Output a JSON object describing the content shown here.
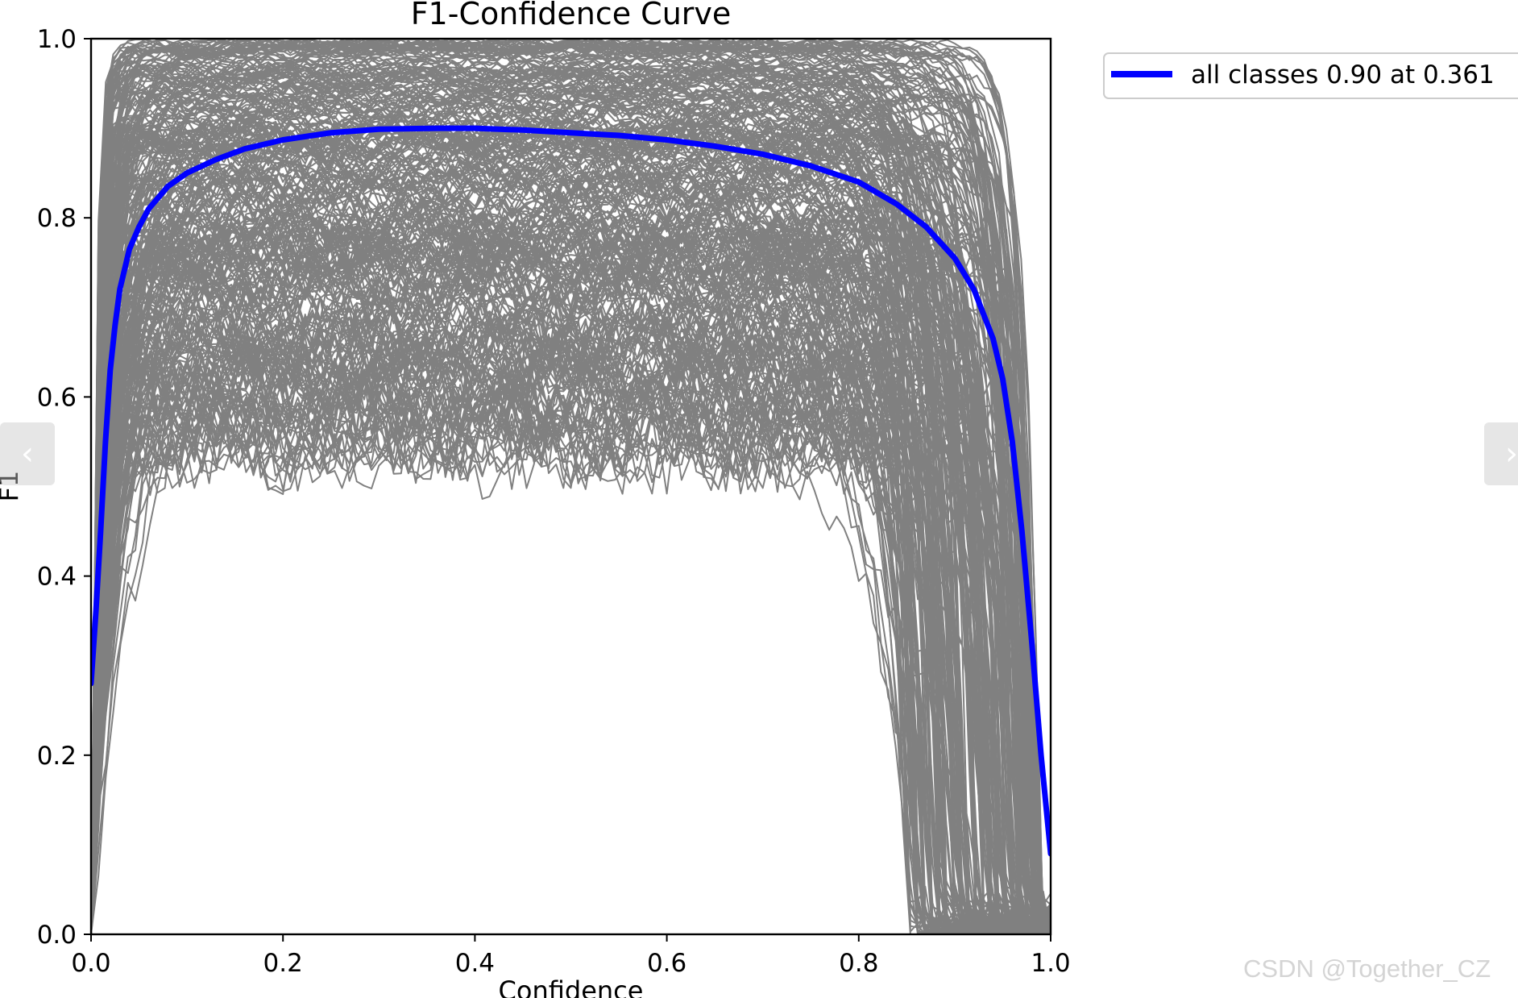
{
  "chart_data": {
    "type": "line",
    "title": "F1-Confidence Curve",
    "xlabel": "Confidence",
    "ylabel": "F1",
    "xlim": [
      0.0,
      1.0
    ],
    "ylim": [
      0.0,
      1.0
    ],
    "x_ticks": [
      "0.0",
      "0.2",
      "0.4",
      "0.6",
      "0.8",
      "1.0"
    ],
    "y_ticks": [
      "0.0",
      "0.2",
      "0.4",
      "0.6",
      "0.8",
      "1.0"
    ],
    "grid": false,
    "legend": {
      "placement": "outside-top-right",
      "entries": [
        {
          "label": "all classes 0.90 at 0.361",
          "color": "#0000ff"
        }
      ]
    },
    "series": [
      {
        "name": "all classes 0.90 at 0.361",
        "color": "#0000ff",
        "x": [
          0.0,
          0.005,
          0.01,
          0.015,
          0.02,
          0.025,
          0.03,
          0.04,
          0.05,
          0.06,
          0.08,
          0.1,
          0.13,
          0.16,
          0.2,
          0.25,
          0.3,
          0.361,
          0.4,
          0.45,
          0.5,
          0.55,
          0.6,
          0.65,
          0.7,
          0.75,
          0.8,
          0.84,
          0.87,
          0.9,
          0.92,
          0.94,
          0.95,
          0.96,
          0.97,
          0.98,
          0.99,
          1.0
        ],
        "y": [
          0.28,
          0.36,
          0.45,
          0.55,
          0.63,
          0.68,
          0.72,
          0.765,
          0.79,
          0.81,
          0.835,
          0.85,
          0.865,
          0.877,
          0.887,
          0.895,
          0.899,
          0.9,
          0.9,
          0.898,
          0.895,
          0.892,
          0.887,
          0.88,
          0.871,
          0.858,
          0.84,
          0.815,
          0.79,
          0.755,
          0.72,
          0.665,
          0.62,
          0.55,
          0.45,
          0.33,
          0.2,
          0.09
        ]
      }
    ],
    "class_curves": {
      "count": 300,
      "color": "#808080"
    }
  },
  "page": {
    "nav_prev_glyph": "‹",
    "nav_next_glyph": "›",
    "watermark": "CSDN @Together_CZ"
  }
}
